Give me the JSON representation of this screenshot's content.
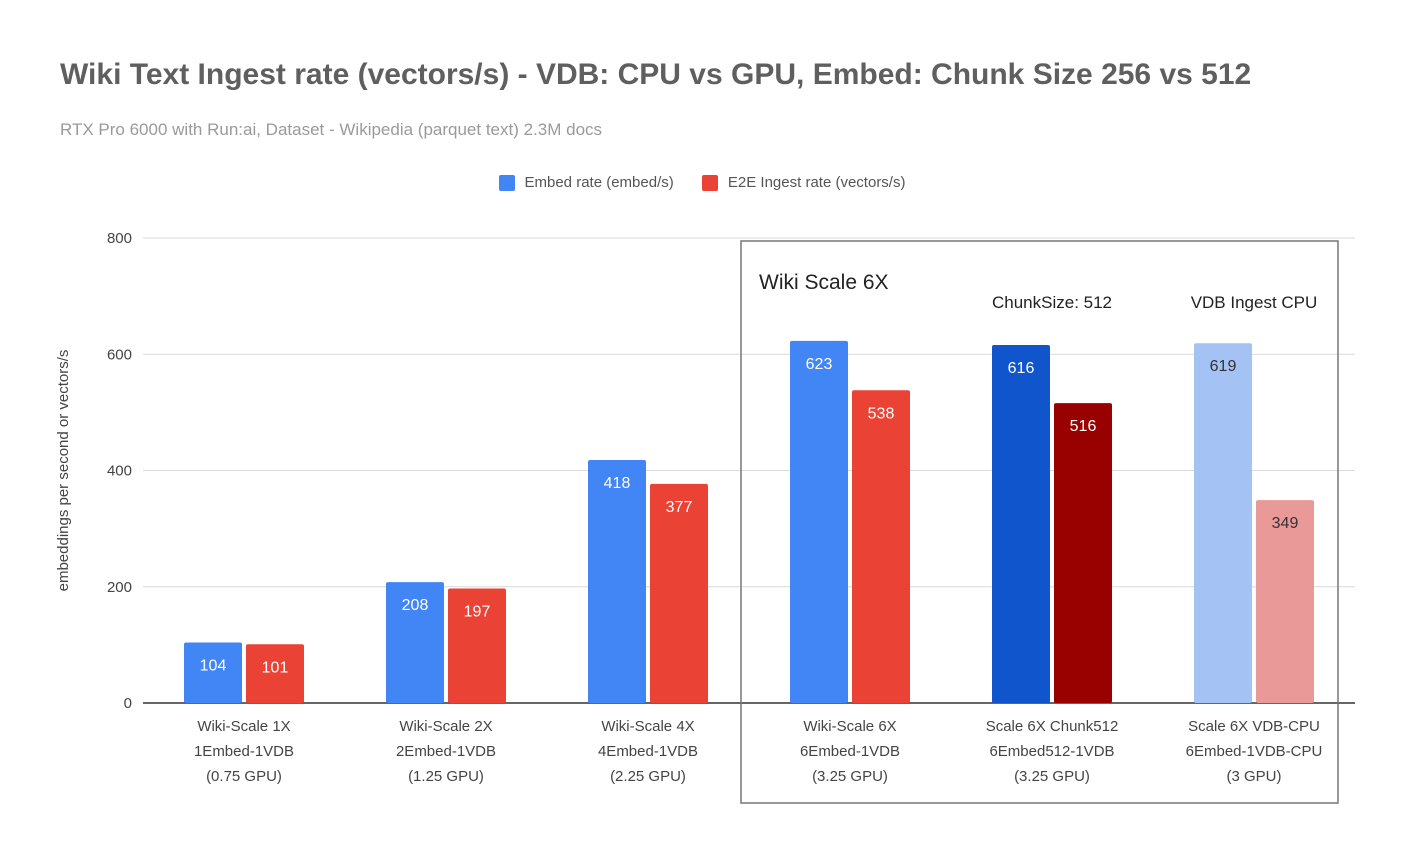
{
  "chart_data": {
    "type": "bar",
    "title": "Wiki Text Ingest rate (vectors/s) - VDB: CPU vs GPU, Embed: Chunk Size 256 vs 512",
    "subtitle": "RTX Pro 6000 with Run:ai, Dataset - Wikipedia (parquet text)  2.3M docs",
    "ylabel": "embeddings per second  or vectors/s",
    "xlabel": "",
    "ylim": [
      0,
      800
    ],
    "yticks": [
      0,
      200,
      400,
      600,
      800
    ],
    "grid": true,
    "legend_position": "top",
    "categories": [
      [
        "Wiki-Scale 1X",
        "1Embed-1VDB",
        "(0.75 GPU)"
      ],
      [
        "Wiki-Scale 2X",
        "2Embed-1VDB",
        "(1.25 GPU)"
      ],
      [
        "Wiki-Scale 4X",
        "4Embed-1VDB",
        "(2.25 GPU)"
      ],
      [
        "Wiki-Scale 6X",
        "6Embed-1VDB",
        "(3.25 GPU)"
      ],
      [
        "Scale 6X Chunk512",
        "6Embed512-1VDB",
        "(3.25 GPU)"
      ],
      [
        "Scale 6X VDB-CPU",
        "6Embed-1VDB-CPU",
        "(3 GPU)"
      ]
    ],
    "series": [
      {
        "name": "Embed rate  (embed/s)",
        "legend_color": "#4285f4",
        "values": [
          104,
          208,
          418,
          623,
          616,
          619
        ],
        "colors": [
          "#4285f4",
          "#4285f4",
          "#4285f4",
          "#4285f4",
          "#1155cc",
          "#a4c2f4"
        ],
        "label_colors": [
          "#ffffff",
          "#ffffff",
          "#ffffff",
          "#ffffff",
          "#ffffff",
          "#333333"
        ]
      },
      {
        "name": "E2E Ingest rate (vectors/s)",
        "legend_color": "#ea4335",
        "values": [
          101,
          197,
          377,
          538,
          516,
          349
        ],
        "colors": [
          "#ea4335",
          "#ea4335",
          "#ea4335",
          "#ea4335",
          "#990000",
          "#ea9999"
        ],
        "label_colors": [
          "#ffffff",
          "#ffffff",
          "#ffffff",
          "#ffffff",
          "#ffffff",
          "#333333"
        ]
      }
    ],
    "annotations": {
      "box_title": "Wiki Scale 6X",
      "chunk_label": "ChunkSize: 512",
      "vdb_label": "VDB Ingest CPU"
    }
  }
}
